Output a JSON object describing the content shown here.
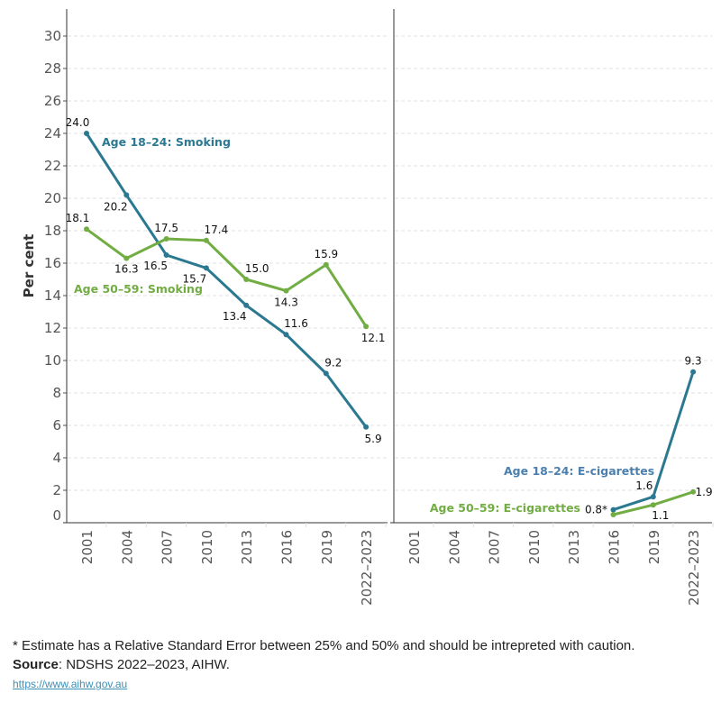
{
  "colors": {
    "blue": "#2b7891",
    "green": "#72ad44",
    "ecig_blue_label": "#4b7fae"
  },
  "chart_data": [
    {
      "type": "line",
      "panel": "left",
      "ylabel": "Per cent",
      "ylim": [
        0,
        30
      ],
      "yticks": [
        0,
        2,
        4,
        6,
        8,
        10,
        12,
        14,
        16,
        18,
        20,
        22,
        24,
        26,
        28,
        30
      ],
      "grid": true,
      "categories": [
        "2001",
        "2004",
        "2007",
        "2010",
        "2013",
        "2016",
        "2019",
        "2022–2023"
      ],
      "series": [
        {
          "name": "Age 18–24: Smoking",
          "color": "blue",
          "values": [
            24.0,
            20.2,
            16.5,
            15.7,
            13.4,
            11.6,
            9.2,
            5.9
          ],
          "labels": [
            "24.0",
            "20.2",
            "16.5",
            "15.7",
            "13.4",
            "11.6",
            "9.2",
            "5.9"
          ]
        },
        {
          "name": "Age 50–59: Smoking",
          "color": "green",
          "values": [
            18.1,
            16.3,
            17.5,
            17.4,
            15.0,
            14.3,
            15.9,
            12.1
          ],
          "labels": [
            "18.1",
            "16.3",
            "17.5",
            "17.4",
            "15.0",
            "14.3",
            "15.9",
            "12.1"
          ]
        }
      ]
    },
    {
      "type": "line",
      "panel": "right",
      "ylim": [
        0,
        30
      ],
      "grid": true,
      "categories": [
        "2001",
        "2004",
        "2007",
        "2010",
        "2013",
        "2016",
        "2019",
        "2022–2023"
      ],
      "series": [
        {
          "name": "Age 18–24: E-cigarettes",
          "color": "blue",
          "values": [
            null,
            null,
            null,
            null,
            null,
            0.8,
            1.6,
            9.3
          ],
          "labels": [
            "",
            "",
            "",
            "",
            "",
            "0.8*",
            "1.6",
            "9.3"
          ]
        },
        {
          "name": "Age 50–59: E-cigarettes",
          "color": "green",
          "values": [
            null,
            null,
            null,
            null,
            null,
            0.5,
            1.1,
            1.9
          ],
          "labels": [
            "",
            "",
            "",
            "",
            "",
            "",
            "1.1",
            "1.9"
          ]
        }
      ]
    }
  ],
  "footnote": "* Estimate has a Relative Standard Error between 25% and 50% and should be intrepreted with caution.",
  "source_label": "Source",
  "source_text": ": NDSHS 2022–2023, AIHW.",
  "link": "https://www.aihw.gov.au"
}
